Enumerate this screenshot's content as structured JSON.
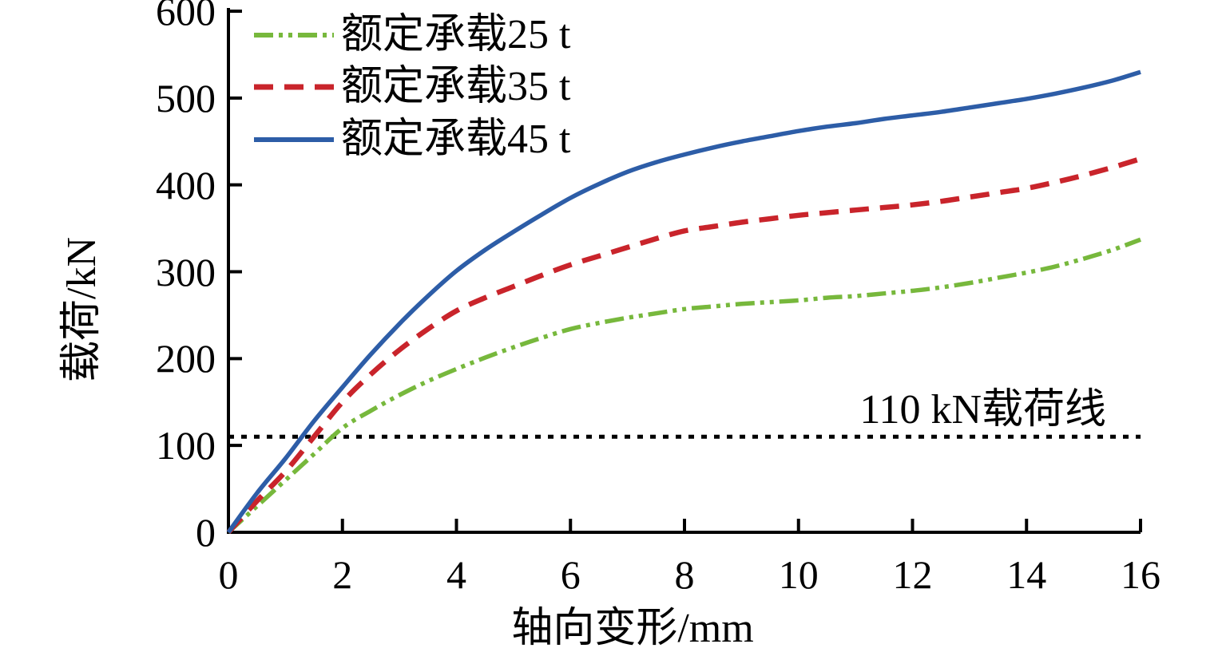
{
  "page": {
    "background": "#ffffff"
  },
  "chart_data": {
    "type": "line",
    "title": "",
    "xlabel": "轴向变形/mm",
    "ylabel": "载荷/kN",
    "xlim": [
      0,
      16
    ],
    "ylim": [
      0,
      600
    ],
    "x_ticks": [
      0,
      2,
      4,
      6,
      8,
      10,
      12,
      14,
      16
    ],
    "y_ticks": [
      0,
      100,
      200,
      300,
      400,
      500,
      600
    ],
    "grid": false,
    "legend_position": "top-left",
    "axis_color": "#000000",
    "x": [
      0,
      0.5,
      1,
      1.5,
      2,
      2.5,
      3,
      3.5,
      4,
      4.5,
      5,
      5.5,
      6,
      6.5,
      7,
      7.5,
      8,
      8.5,
      9,
      9.5,
      10,
      10.5,
      11,
      11.5,
      12,
      12.5,
      13,
      13.5,
      14,
      14.5,
      15,
      15.5,
      16
    ],
    "series": [
      {
        "id": "25t",
        "name": "额定承载25 t",
        "color": "#77b83c",
        "dash": "24 7 5 7 5 7",
        "width": 5.5,
        "values": [
          0,
          30,
          60,
          90,
          120,
          140,
          158,
          174,
          188,
          201,
          213,
          224,
          234,
          241,
          247,
          252,
          257,
          260,
          263,
          265,
          267,
          270,
          272,
          275,
          278,
          282,
          287,
          293,
          299,
          306,
          315,
          325,
          337
        ]
      },
      {
        "id": "35t",
        "name": "额定承载35 t",
        "color": "#c9242b",
        "dash": "24 14",
        "width": 6.5,
        "values": [
          0,
          36,
          70,
          110,
          150,
          182,
          210,
          234,
          255,
          270,
          283,
          296,
          308,
          318,
          328,
          338,
          347,
          352,
          357,
          361,
          365,
          368,
          371,
          374,
          377,
          381,
          386,
          391,
          396,
          403,
          411,
          420,
          430
        ]
      },
      {
        "id": "45t",
        "name": "额定承载45 t",
        "color": "#2d5da7",
        "dash": "",
        "width": 5.5,
        "values": [
          0,
          45,
          85,
          128,
          167,
          205,
          240,
          272,
          301,
          325,
          346,
          366,
          385,
          401,
          415,
          426,
          435,
          443,
          450,
          456,
          462,
          467,
          471,
          476,
          480,
          484,
          489,
          494,
          499,
          505,
          512,
          520,
          530
        ]
      }
    ],
    "reference_line": {
      "value": 110,
      "label": "110 kN载荷线",
      "color": "#000000",
      "dash": "7 9",
      "width": 5
    }
  }
}
